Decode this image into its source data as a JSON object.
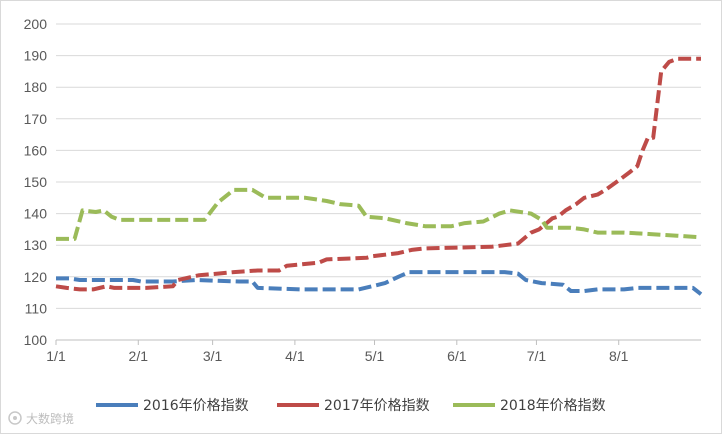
{
  "chart_data": {
    "type": "line",
    "title": "",
    "xlabel": "",
    "ylabel": "",
    "ylim": [
      100,
      200
    ],
    "yticks": [
      100,
      110,
      120,
      130,
      140,
      150,
      160,
      170,
      180,
      190,
      200
    ],
    "xlim": [
      1,
      244
    ],
    "xticks": [
      {
        "label": "1/1",
        "day": 1
      },
      {
        "label": "2/1",
        "day": 32
      },
      {
        "label": "3/1",
        "day": 60
      },
      {
        "label": "4/1",
        "day": 91
      },
      {
        "label": "5/1",
        "day": 121
      },
      {
        "label": "6/1",
        "day": 152
      },
      {
        "label": "7/1",
        "day": 182
      },
      {
        "label": "8/1",
        "day": 213
      }
    ],
    "grid": "horizontal",
    "legend": "bottom",
    "line_style": "dashed",
    "series": [
      {
        "name": "2016年价格指数",
        "color": "#4a7ebb",
        "points": [
          [
            1,
            119.5
          ],
          [
            6,
            119.5
          ],
          [
            10,
            119
          ],
          [
            30,
            119
          ],
          [
            33,
            118.5
          ],
          [
            45,
            118.5
          ],
          [
            54,
            119
          ],
          [
            70,
            118.5
          ],
          [
            75,
            118.5
          ],
          [
            77,
            116.5
          ],
          [
            93,
            116
          ],
          [
            105,
            116
          ],
          [
            115,
            116
          ],
          [
            120,
            117
          ],
          [
            125,
            118
          ],
          [
            130,
            120
          ],
          [
            134,
            121.5
          ],
          [
            150,
            121.5
          ],
          [
            160,
            121.5
          ],
          [
            170,
            121.5
          ],
          [
            175,
            121
          ],
          [
            178,
            119
          ],
          [
            184,
            118
          ],
          [
            192,
            117.5
          ],
          [
            195,
            115.5
          ],
          [
            200,
            115.5
          ],
          [
            205,
            116
          ],
          [
            215,
            116
          ],
          [
            220,
            116.5
          ],
          [
            241,
            116.5
          ],
          [
            244,
            114.5
          ]
        ]
      },
      {
        "name": "2017年价格指数",
        "color": "#be4b48",
        "points": [
          [
            1,
            117
          ],
          [
            5,
            116.5
          ],
          [
            10,
            116
          ],
          [
            15,
            116
          ],
          [
            20,
            117
          ],
          [
            23,
            116.5
          ],
          [
            35,
            116.5
          ],
          [
            45,
            117
          ],
          [
            47,
            119
          ],
          [
            55,
            120.5
          ],
          [
            62,
            121
          ],
          [
            68,
            121.5
          ],
          [
            77,
            122
          ],
          [
            85,
            122
          ],
          [
            88,
            123.5
          ],
          [
            100,
            124.5
          ],
          [
            103,
            125.5
          ],
          [
            118,
            126
          ],
          [
            120,
            126.5
          ],
          [
            125,
            127
          ],
          [
            130,
            127.5
          ],
          [
            135,
            128.5
          ],
          [
            140,
            129
          ],
          [
            165,
            129.5
          ],
          [
            170,
            130
          ],
          [
            175,
            130.5
          ],
          [
            180,
            134
          ],
          [
            183,
            135
          ],
          [
            188,
            138.5
          ],
          [
            190,
            139
          ],
          [
            193,
            141
          ],
          [
            197,
            143
          ],
          [
            200,
            145
          ],
          [
            205,
            146
          ],
          [
            208,
            147.5
          ],
          [
            213,
            150.5
          ],
          [
            217,
            153
          ],
          [
            220,
            155
          ],
          [
            222,
            160
          ],
          [
            224,
            164
          ],
          [
            226,
            164
          ],
          [
            229,
            185
          ],
          [
            232,
            188
          ],
          [
            235,
            189
          ],
          [
            244,
            189
          ]
        ]
      },
      {
        "name": "2018年价格指数",
        "color": "#9bbb59",
        "points": [
          [
            1,
            132
          ],
          [
            8,
            132
          ],
          [
            11,
            141
          ],
          [
            16,
            140.5
          ],
          [
            19,
            141
          ],
          [
            22,
            139
          ],
          [
            25,
            138
          ],
          [
            40,
            138
          ],
          [
            48,
            138
          ],
          [
            57,
            138
          ],
          [
            62,
            143.5
          ],
          [
            68,
            147.5
          ],
          [
            75,
            147.5
          ],
          [
            78,
            146
          ],
          [
            80,
            145
          ],
          [
            95,
            145
          ],
          [
            103,
            144
          ],
          [
            108,
            143
          ],
          [
            115,
            142.5
          ],
          [
            118,
            139
          ],
          [
            125,
            138.5
          ],
          [
            133,
            137
          ],
          [
            140,
            136
          ],
          [
            150,
            136
          ],
          [
            155,
            137
          ],
          [
            162,
            137.5
          ],
          [
            168,
            140
          ],
          [
            172,
            141
          ],
          [
            180,
            140
          ],
          [
            184,
            138
          ],
          [
            186,
            135.5
          ],
          [
            195,
            135.5
          ],
          [
            200,
            135
          ],
          [
            205,
            134
          ],
          [
            215,
            134
          ],
          [
            225,
            133.5
          ],
          [
            235,
            133
          ],
          [
            244,
            132.5
          ]
        ]
      }
    ]
  },
  "watermark": {
    "text": "大数跨境"
  }
}
